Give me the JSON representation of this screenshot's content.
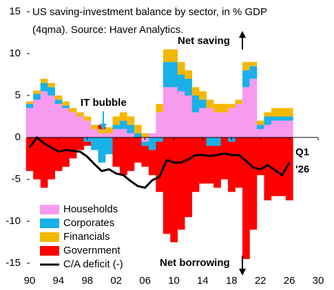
{
  "chart_data": {
    "type": "bar",
    "title": [
      "US saving-investment balance by sector, in % GDP",
      "(4qma). Source: Haver Analytics."
    ],
    "x": [
      1990,
      1991,
      1992,
      1993,
      1994,
      1995,
      1996,
      1997,
      1998,
      1999,
      2000,
      2001,
      2002,
      2003,
      2004,
      2005,
      2006,
      2007,
      2008,
      2009,
      2010,
      2011,
      2012,
      2013,
      2014,
      2015,
      2016,
      2017,
      2018,
      2019,
      2020,
      2021,
      2022,
      2023,
      2024,
      2025,
      2026
    ],
    "series": [
      {
        "name": "Households",
        "color": "#f79bef",
        "values": [
          3.5,
          4.5,
          5.5,
          5,
          4,
          3.5,
          3,
          2.5,
          2,
          1,
          0.5,
          0.5,
          1,
          1,
          0.5,
          0,
          -0.5,
          0.5,
          3,
          6,
          6,
          5.5,
          5,
          3,
          3.5,
          3.5,
          3,
          3,
          3.5,
          4,
          6,
          7,
          1,
          1.5,
          2,
          2,
          2
        ]
      },
      {
        "name": "Corporates",
        "color": "#1ab0e8",
        "values": [
          0.5,
          0.7,
          1,
          1,
          0.5,
          0.3,
          0,
          0,
          -0.5,
          -1.5,
          -3,
          -2,
          0.5,
          1,
          1,
          0.5,
          -0.5,
          -1.5,
          -0.5,
          3,
          3,
          2,
          2,
          2,
          1,
          -1,
          -1,
          0,
          -0.5,
          0,
          2,
          1.5,
          0.5,
          1,
          0.5,
          0.5,
          0.5
        ]
      },
      {
        "name": "Financials",
        "color": "#f5b800",
        "values": [
          0.3,
          0.4,
          0.5,
          0.5,
          0.5,
          0.5,
          0.5,
          0.5,
          0.5,
          0.5,
          0.5,
          0.7,
          1,
          1,
          1,
          1,
          0.5,
          0,
          1,
          1.5,
          1.5,
          1.5,
          1,
          1,
          1,
          1,
          1,
          1,
          0.5,
          0.5,
          1,
          0.5,
          0.5,
          0.5,
          1,
          1,
          1
        ]
      },
      {
        "name": "Government",
        "color": "#ff0000",
        "values": [
          -4,
          -5,
          -6,
          -5,
          -4,
          -3.5,
          -2.5,
          -1.5,
          -0.5,
          0,
          0.5,
          0,
          -3.5,
          -4.5,
          -4,
          -3,
          -2.5,
          -3,
          -6,
          -11.5,
          -12.5,
          -11,
          -9.5,
          -6.5,
          -5.5,
          -4.5,
          -5,
          -5,
          -6,
          -6,
          -14.5,
          -11,
          -4.5,
          -7.5,
          -7,
          -7,
          -7.5
        ]
      },
      {
        "name": "C/A deficit (-)",
        "color": "#000000",
        "type": "line",
        "values": [
          -1.2,
          0,
          -0.7,
          -1.2,
          -1.7,
          -1.5,
          -1.6,
          -1.7,
          -2.3,
          -3.2,
          -4,
          -3.8,
          -4.3,
          -4.5,
          -5.2,
          -5.8,
          -6,
          -5.1,
          -4.7,
          -2.7,
          -3,
          -3,
          -2.6,
          -2.1,
          -2.1,
          -2.2,
          -2.1,
          -1.9,
          -2.1,
          -2.1,
          -2.8,
          -3.6,
          -3.8,
          -3.3,
          -3.9,
          -4.5,
          -3
        ]
      }
    ],
    "xlim": [
      1990,
      2030
    ],
    "xticks": [
      {
        "value": 1990,
        "label": "90"
      },
      {
        "value": 1994,
        "label": "94"
      },
      {
        "value": 1998,
        "label": "98"
      },
      {
        "value": 2002,
        "label": "02"
      },
      {
        "value": 2006,
        "label": "06"
      },
      {
        "value": 2010,
        "label": "10"
      },
      {
        "value": 2014,
        "label": "14"
      },
      {
        "value": 2018,
        "label": "18"
      },
      {
        "value": 2022,
        "label": "22"
      },
      {
        "value": 2026,
        "label": "26"
      },
      {
        "value": 2030,
        "label": "30"
      }
    ],
    "ylim": [
      -15,
      15
    ],
    "yticks": [
      -15,
      -10,
      -5,
      0,
      5,
      10,
      15
    ],
    "grid": false,
    "legend": "bottom-left",
    "annotations": [
      "IT bubble",
      "Net saving",
      "Net borrowing",
      "Q1",
      "'26"
    ]
  }
}
